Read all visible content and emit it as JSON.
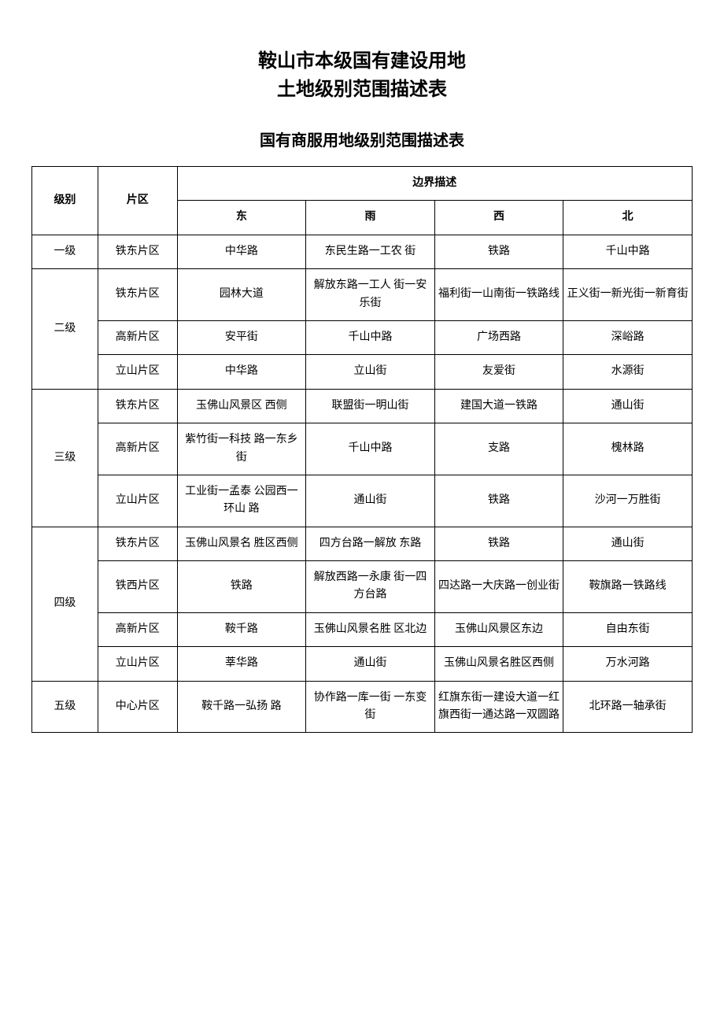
{
  "title": {
    "line1": "鞍山市本级国有建设用地",
    "line2": "土地级别范围描述表"
  },
  "subtitle": "国有商服用地级别范围描述表",
  "table": {
    "header": {
      "level": "级别",
      "area": "片区",
      "boundary": "边界描述",
      "east": "东",
      "south": "雨",
      "west": "西",
      "north": "北"
    },
    "groups": [
      {
        "level": "一级",
        "rows": [
          {
            "area": "铁东片区",
            "east": "中华路",
            "south": "东民生路一工农 街",
            "west": "铁路",
            "north": "千山中路"
          }
        ]
      },
      {
        "level": "二级",
        "rows": [
          {
            "area": "铁东片区",
            "east": "园林大道",
            "south": "解放东路一工人 街一安乐街",
            "west": "福利街一山南街一铁路线",
            "north": "正义街一新光街一新育街"
          },
          {
            "area": "高新片区",
            "east": "安平街",
            "south": "千山中路",
            "west": "广场西路",
            "north": "深峪路"
          },
          {
            "area": "立山片区",
            "east": "中华路",
            "south": "立山街",
            "west": "友爱街",
            "north": "水源街"
          }
        ]
      },
      {
        "level": "三级",
        "rows": [
          {
            "area": "铁东片区",
            "east": "玉佛山风景区 西侧",
            "south": "联盟街一明山街",
            "west": "建国大道一铁路",
            "north": "通山街"
          },
          {
            "area": "高新片区",
            "east": "紫竹街一科技 路一东乡街",
            "south": "千山中路",
            "west": "支路",
            "north": "槐林路"
          },
          {
            "area": "立山片区",
            "east": "工业街一孟泰 公园西一环山 路",
            "south": "通山街",
            "west": "铁路",
            "north": "沙河一万胜街"
          }
        ]
      },
      {
        "level": "四级",
        "rows": [
          {
            "area": "铁东片区",
            "east": "玉佛山风景名 胜区西侧",
            "south": "四方台路一解放 东路",
            "west": "铁路",
            "north": "通山街"
          },
          {
            "area": "铁西片区",
            "east": "铁路",
            "south": "解放西路一永康 街一四方台路",
            "west": "四达路一大庆路一创业街",
            "north": "鞍旗路一铁路线"
          },
          {
            "area": "高新片区",
            "east": "鞍千路",
            "south": "玉佛山风景名胜 区北边",
            "west": "玉佛山风景区东边",
            "north": "自由东街"
          },
          {
            "area": "立山片区",
            "east": "莘华路",
            "south": "通山街",
            "west": "玉佛山风景名胜区西侧",
            "north": "万水河路"
          }
        ]
      },
      {
        "level": "五级",
        "rows": [
          {
            "area": "中心片区",
            "east": "鞍千路一弘扬 路",
            "south": "协作路一库一街 一东变街",
            "west": "红旗东街一建设大道一红旗西街一通达路一双圆路",
            "north": "北环路一轴承街"
          }
        ]
      }
    ]
  }
}
